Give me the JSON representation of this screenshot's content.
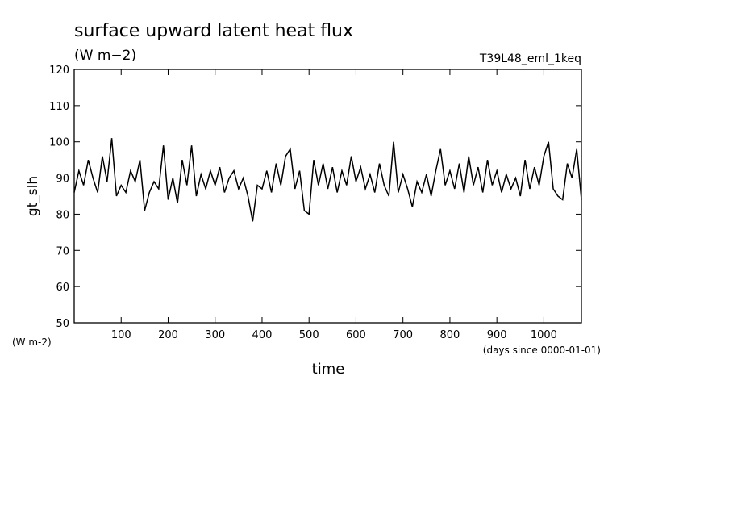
{
  "chart_data": {
    "type": "line",
    "title": "surface upward latent heat flux",
    "subtitle": "(W m−2)",
    "annotation": "T39L48_eml_1keq",
    "y_label": "gt_slh",
    "y_unit": "(W m-2)",
    "x_label": "time",
    "x_unit": "(days since 0000-01-01)",
    "color": "#000000",
    "x": [
      0,
      10,
      20,
      30,
      40,
      50,
      60,
      70,
      80,
      90,
      100,
      110,
      120,
      130,
      140,
      150,
      160,
      170,
      180,
      190,
      200,
      210,
      220,
      230,
      240,
      250,
      260,
      270,
      280,
      290,
      300,
      310,
      320,
      330,
      340,
      350,
      360,
      370,
      380,
      390,
      400,
      410,
      420,
      430,
      440,
      450,
      460,
      470,
      480,
      490,
      500,
      510,
      520,
      530,
      540,
      550,
      560,
      570,
      580,
      590,
      600,
      610,
      620,
      630,
      640,
      650,
      660,
      670,
      680,
      690,
      700,
      710,
      720,
      730,
      740,
      750,
      760,
      770,
      780,
      790,
      800,
      810,
      820,
      830,
      840,
      850,
      860,
      870,
      880,
      890,
      900,
      910,
      920,
      930,
      940,
      950,
      960,
      970,
      980,
      990,
      1000,
      1010,
      1020,
      1030,
      1040,
      1050,
      1060,
      1070,
      1080
    ],
    "values": [
      86,
      92,
      88,
      95,
      90,
      86,
      96,
      89,
      101,
      85,
      88,
      86,
      92,
      89,
      95,
      81,
      86,
      89,
      87,
      99,
      84,
      90,
      83,
      95,
      88,
      99,
      85,
      91,
      87,
      92,
      88,
      93,
      86,
      90,
      92,
      87,
      90,
      85,
      78,
      88,
      87,
      92,
      86,
      94,
      88,
      96,
      98,
      87,
      92,
      81,
      80,
      95,
      88,
      94,
      87,
      93,
      86,
      92,
      88,
      96,
      89,
      93,
      87,
      91,
      86,
      94,
      88,
      85,
      100,
      86,
      91,
      87,
      82,
      89,
      86,
      91,
      85,
      92,
      98,
      88,
      92,
      87,
      94,
      86,
      96,
      88,
      93,
      86,
      95,
      88,
      92,
      86,
      91,
      87,
      90,
      85,
      95,
      87,
      93,
      88,
      96,
      100,
      87,
      85,
      84,
      94,
      90,
      98,
      84
    ],
    "xlim": [
      0,
      1080
    ],
    "xticks": [
      100,
      200,
      300,
      400,
      500,
      600,
      700,
      800,
      900,
      1000
    ],
    "ylim": [
      50,
      120
    ],
    "yticks": [
      50,
      60,
      70,
      80,
      90,
      100,
      110,
      120
    ]
  }
}
